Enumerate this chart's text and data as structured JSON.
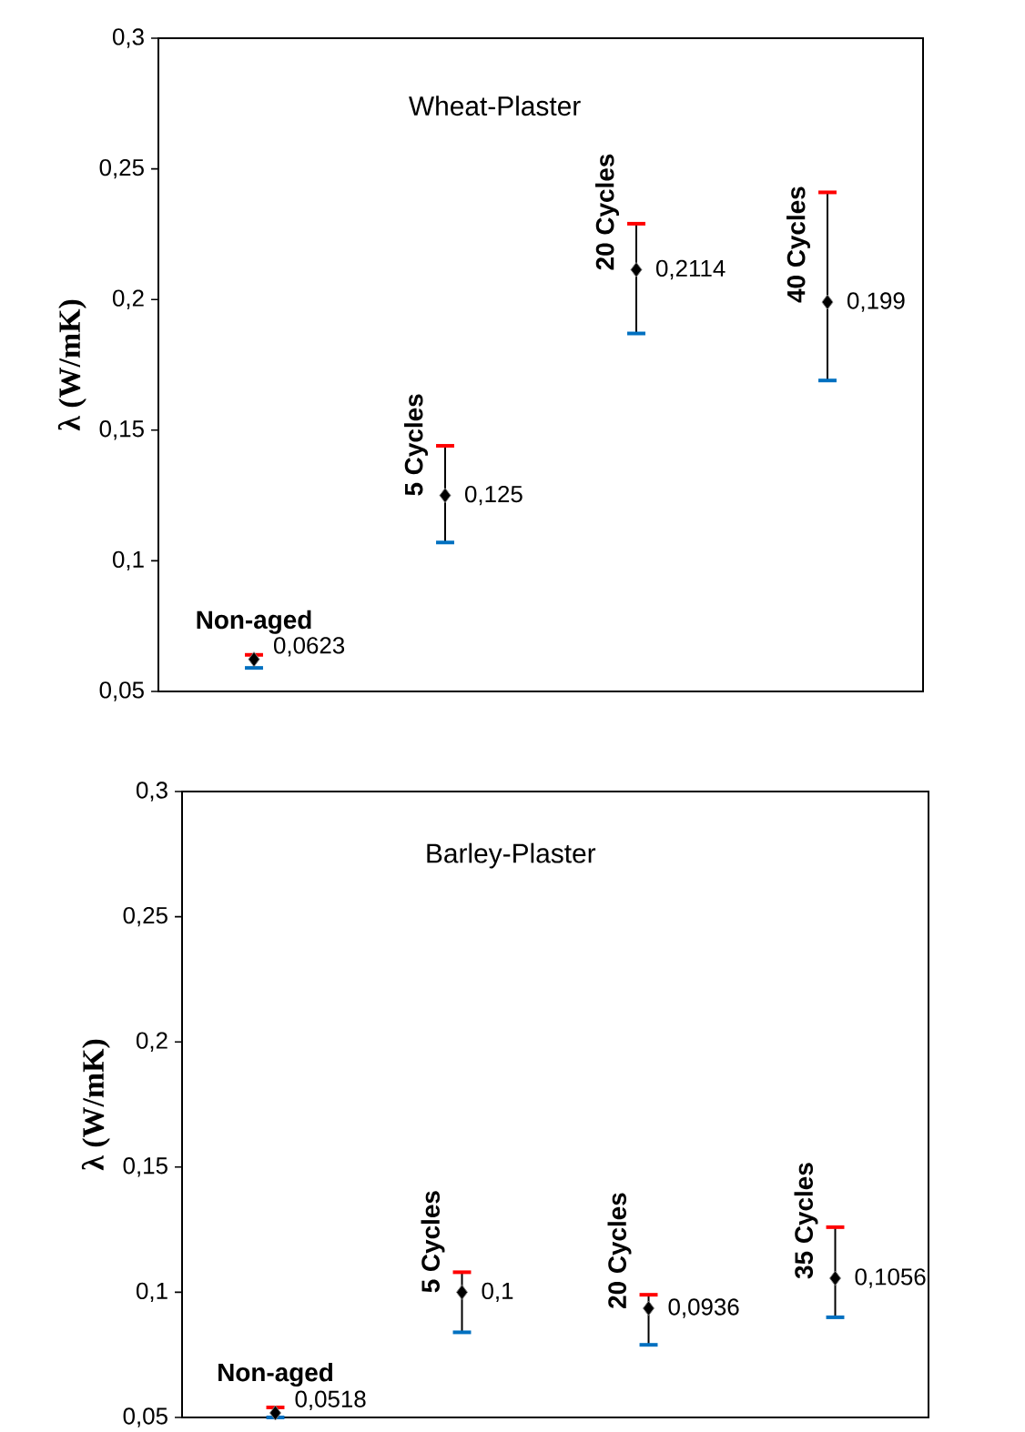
{
  "chart_data": [
    {
      "type": "scatter",
      "title": "Wheat-Plaster",
      "ylabel": "λ (W/mK)",
      "categories": [
        "Non-aged",
        "5 Cycles",
        "20 Cycles",
        "40 Cycles"
      ],
      "values": [
        0.0623,
        0.125,
        0.2114,
        0.199
      ],
      "errors": [
        [
          0.059,
          0.064
        ],
        [
          0.107,
          0.144
        ],
        [
          0.187,
          0.229
        ],
        [
          0.169,
          0.241
        ]
      ],
      "value_labels": [
        "0,0623",
        "0,125",
        "0,2114",
        "0,199"
      ],
      "color": "#000000",
      "marker": "diamond",
      "ylim": [
        0.05,
        0.3
      ],
      "yticks": [
        {
          "value": 0.05,
          "label": "0,05"
        },
        {
          "value": 0.1,
          "label": "0,1"
        },
        {
          "value": 0.15,
          "label": "0,15"
        },
        {
          "value": 0.2,
          "label": "0,2"
        },
        {
          "value": 0.25,
          "label": "0,25"
        },
        {
          "value": 0.3,
          "label": "0,3"
        }
      ],
      "tick_labels": "y"
    },
    {
      "type": "scatter",
      "title": "Barley-Plaster",
      "ylabel": "λ (W/mK)",
      "categories": [
        "Non-aged",
        "5 Cycles",
        "20 Cycles",
        "35 Cycles"
      ],
      "values": [
        0.0518,
        0.1,
        0.0936,
        0.1056
      ],
      "errors": [
        [
          0.05,
          0.054
        ],
        [
          0.084,
          0.108
        ],
        [
          0.079,
          0.099
        ],
        [
          0.09,
          0.126
        ]
      ],
      "value_labels": [
        "0,0518",
        "0,1",
        "0,0936",
        "0,1056"
      ],
      "color": "#000000",
      "marker": "diamond",
      "ylim": [
        0.05,
        0.3
      ],
      "yticks": [
        {
          "value": 0.05,
          "label": "0,05"
        },
        {
          "value": 0.1,
          "label": "0,1"
        },
        {
          "value": 0.15,
          "label": "0,15"
        },
        {
          "value": 0.2,
          "label": "0,2"
        },
        {
          "value": 0.25,
          "label": "0,25"
        },
        {
          "value": 0.3,
          "label": "0,3"
        }
      ],
      "tick_labels": "y"
    }
  ]
}
